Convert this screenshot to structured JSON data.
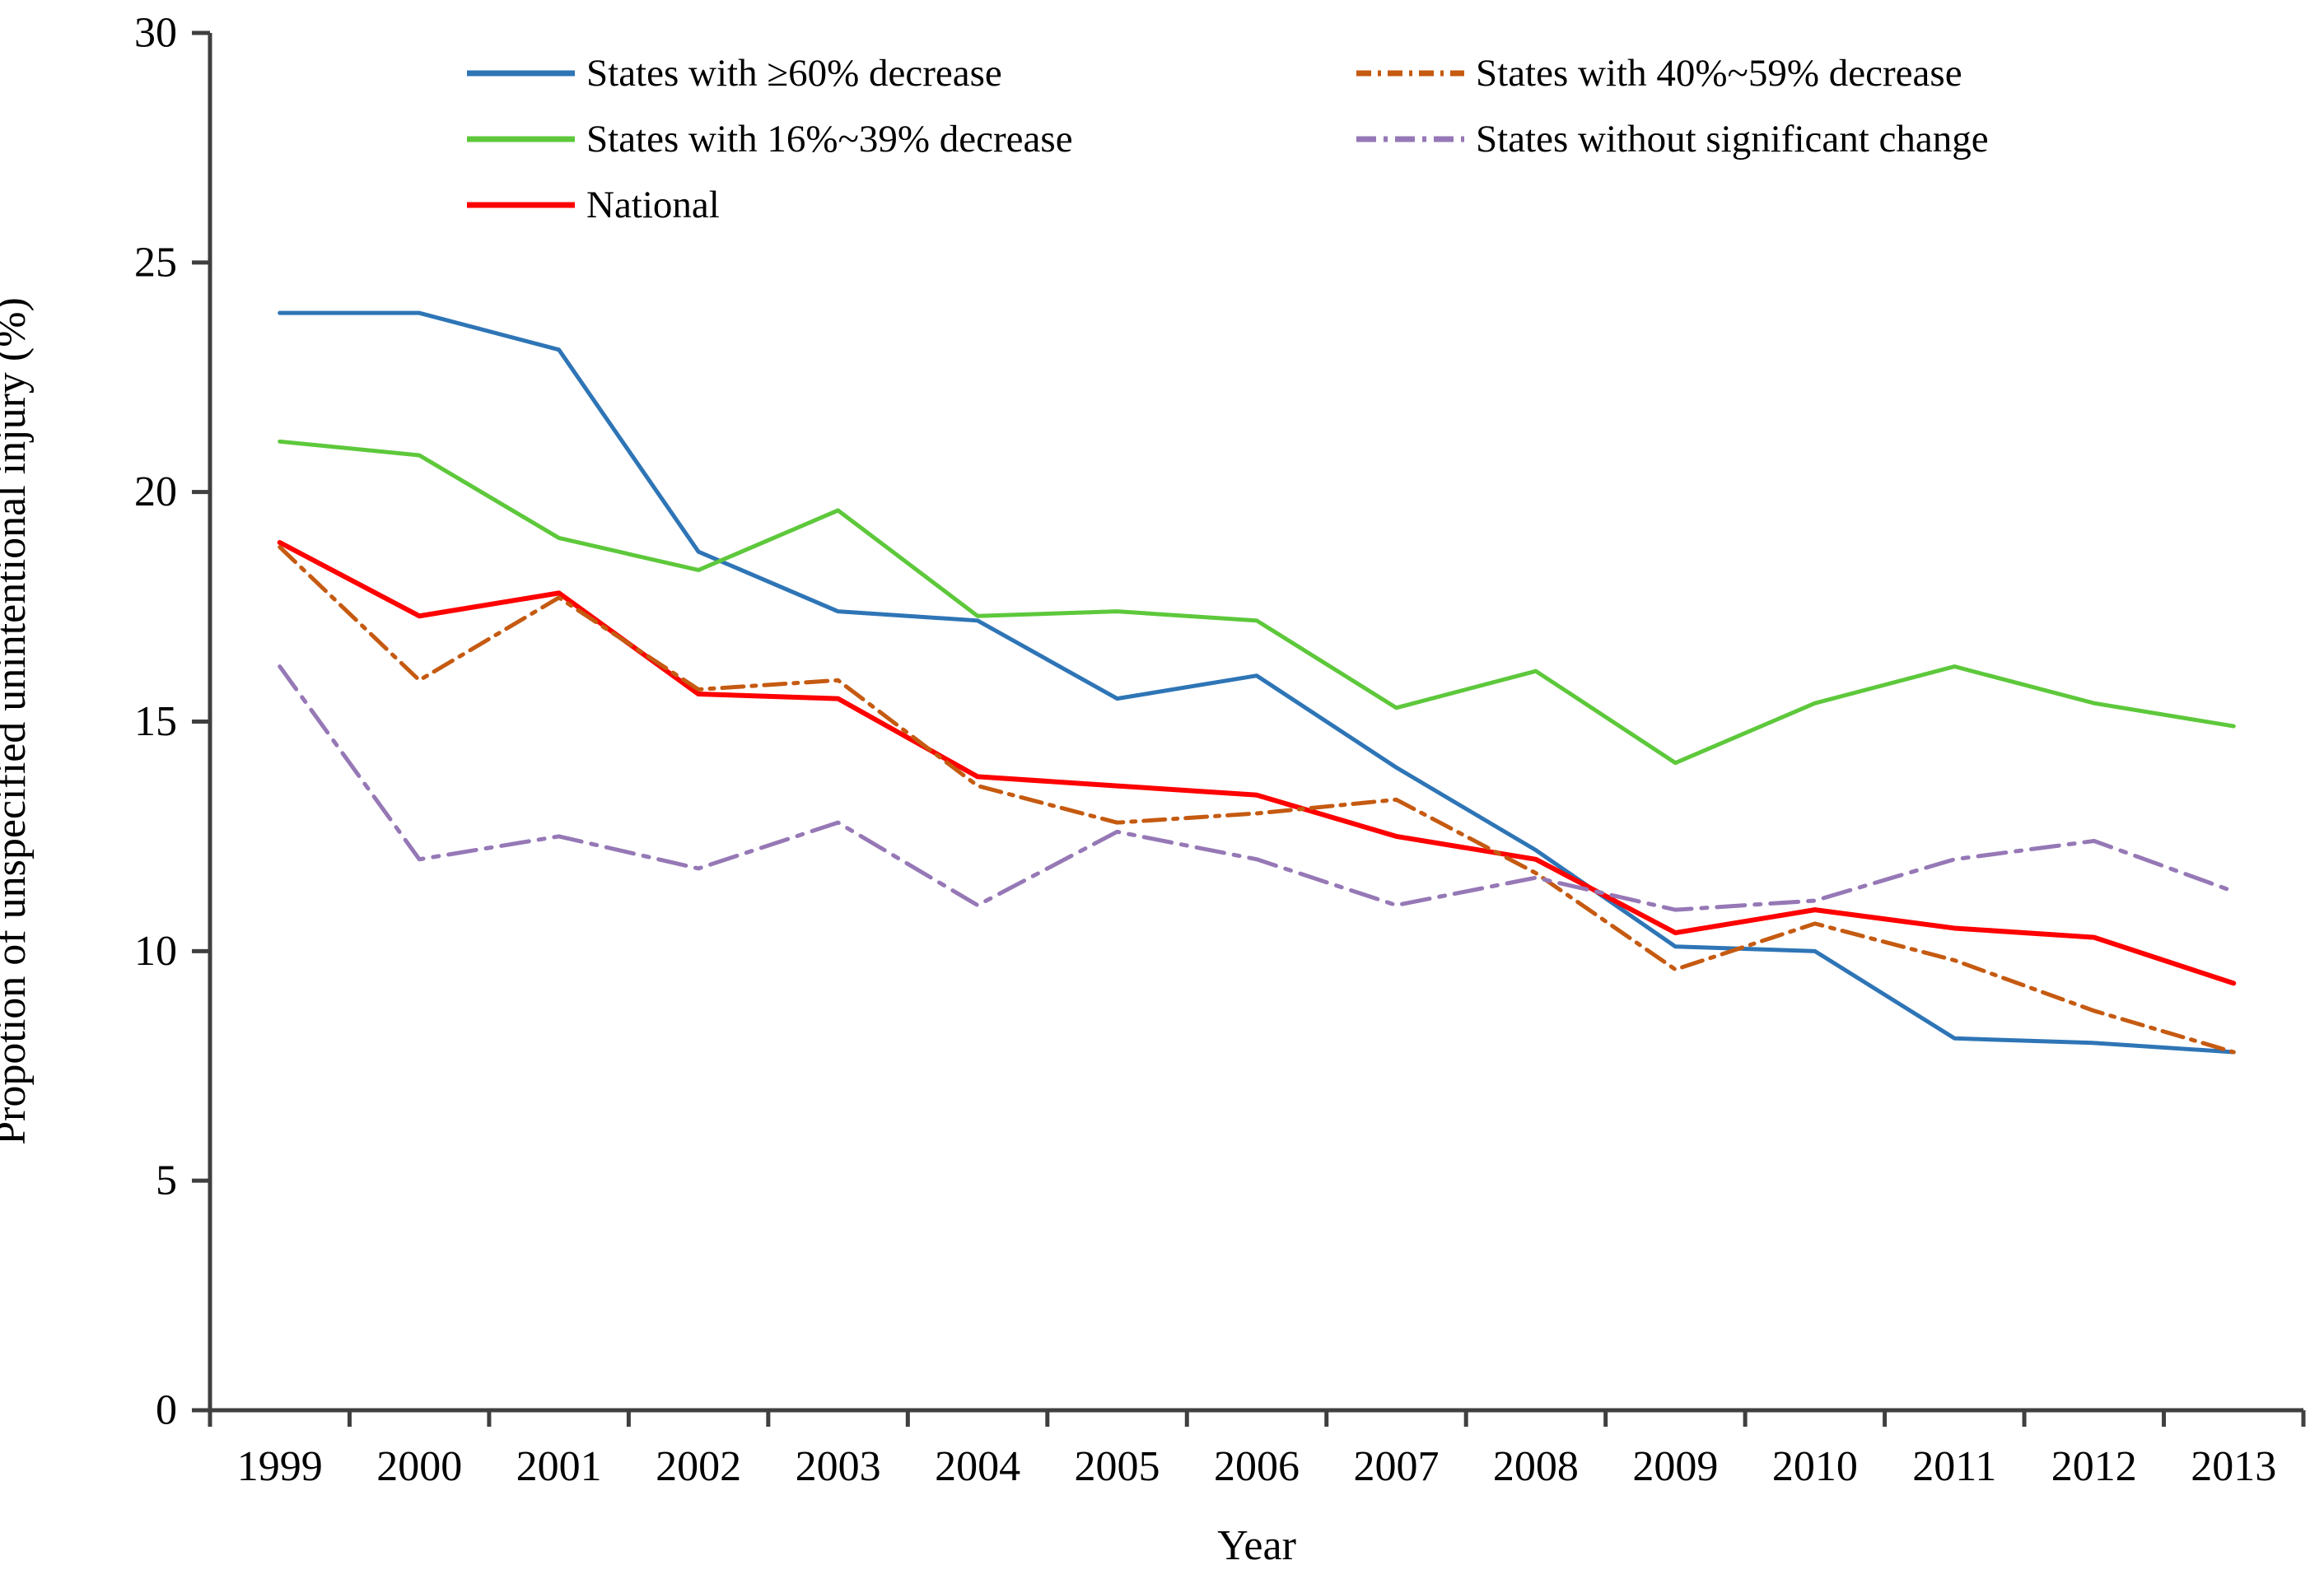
{
  "figure": {
    "y_axis_title": "Propotion of unspecified unintentional injury  (%)",
    "x_axis_title": "Year"
  },
  "chart_data": {
    "type": "line",
    "title": "",
    "xlabel": "Year",
    "ylabel": "Propotion of unspecified unintentional injury  (%)",
    "categories": [
      "1999",
      "2000",
      "2001",
      "2002",
      "2003",
      "2004",
      "2005",
      "2006",
      "2007",
      "2008",
      "2009",
      "2010",
      "2011",
      "2012",
      "2013"
    ],
    "ylim": [
      0,
      30
    ],
    "y_ticks": [
      0,
      5,
      10,
      15,
      20,
      25,
      30
    ],
    "grid": false,
    "legend_position": "inside-top, two columns",
    "axis_color": "#3f3f3f",
    "series": [
      {
        "name": "States with ≥60% decrease",
        "color": "#2E75B6",
        "style": "solid",
        "values": [
          23.9,
          23.9,
          23.1,
          18.7,
          17.4,
          17.2,
          15.5,
          16.0,
          14.0,
          12.2,
          10.1,
          10.0,
          8.1,
          8.0,
          7.8
        ]
      },
      {
        "name": "States with 16%~39% decrease",
        "color": "#5DC83B",
        "style": "solid",
        "values": [
          21.1,
          20.8,
          19.0,
          18.3,
          19.6,
          17.3,
          17.4,
          17.2,
          15.3,
          16.1,
          14.1,
          15.4,
          16.2,
          15.4,
          14.9
        ]
      },
      {
        "name": "National",
        "color": "#FF0000",
        "style": "solid",
        "values": [
          18.9,
          17.3,
          17.8,
          15.6,
          15.5,
          13.8,
          13.6,
          13.4,
          12.5,
          12.0,
          10.4,
          10.9,
          10.5,
          10.3,
          9.3
        ]
      },
      {
        "name": "States with 40%~59% decrease",
        "color": "#C55A11",
        "style": "dash-dot",
        "values": [
          18.8,
          15.9,
          17.7,
          15.7,
          15.9,
          13.6,
          12.8,
          13.0,
          13.3,
          11.7,
          9.6,
          10.6,
          9.8,
          8.7,
          7.8
        ]
      },
      {
        "name": "States without significant change",
        "color": "#9678B6",
        "style": "long-dash-dot",
        "values": [
          16.2,
          12.0,
          12.5,
          11.8,
          12.8,
          11.0,
          12.6,
          12.0,
          11.0,
          11.6,
          10.9,
          11.1,
          12.0,
          12.4,
          11.3
        ]
      }
    ]
  }
}
